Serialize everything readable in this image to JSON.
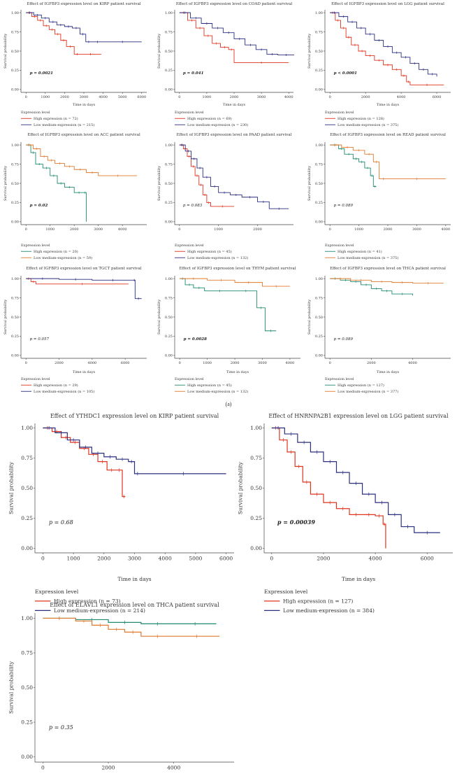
{
  "figure": {
    "panel_label": "(a)",
    "legend_heading": "Expression level"
  },
  "colors": {
    "red": "#e0341e",
    "blue": "#2b2f80",
    "orange": "#e07a2e",
    "green": "#1f8a70",
    "axis": "#444444"
  },
  "chart_data": [
    {
      "type": "line",
      "title": "Effect of IGFBP3 expression level on KIRP patient survival",
      "xlabel": "Time in days",
      "ylabel": "Survival probability",
      "xlim": [
        0,
        6000
      ],
      "ylim": [
        0,
        1
      ],
      "xticks": [
        0,
        1000,
        2000,
        3000,
        4000,
        5000,
        6000
      ],
      "yticks": [
        0,
        0.25,
        0.5,
        0.75,
        1.0
      ],
      "pvalue": "p = 0.0021",
      "series": [
        {
          "name": "High expression (n = 72)",
          "color": "#e0341e",
          "x": [
            0,
            300,
            600,
            900,
            1200,
            1500,
            1800,
            2100,
            2500,
            2800,
            3900
          ],
          "y": [
            1.0,
            0.95,
            0.9,
            0.83,
            0.78,
            0.72,
            0.64,
            0.56,
            0.46,
            0.46,
            0.46
          ]
        },
        {
          "name": "Low medium-expression (n = 215)",
          "color": "#2b2f80",
          "x": [
            0,
            400,
            800,
            1200,
            1600,
            2000,
            2400,
            2800,
            3100,
            3400,
            4000,
            6000
          ],
          "y": [
            1.0,
            0.97,
            0.93,
            0.88,
            0.84,
            0.82,
            0.8,
            0.72,
            0.62,
            0.62,
            0.62,
            0.62
          ]
        }
      ]
    },
    {
      "type": "line",
      "title": "Effect of IGFBP3 expression level on COAD patient survival",
      "xlabel": "Time in days",
      "ylabel": "Survival probability",
      "xlim": [
        0,
        4000
      ],
      "ylim": [
        0,
        1
      ],
      "xticks": [
        0,
        1000,
        2000,
        3000,
        4000
      ],
      "yticks": [
        0,
        0.25,
        0.5,
        0.75,
        1.0
      ],
      "pvalue": "p = 0.041",
      "series": [
        {
          "name": "High expression (n = 69)",
          "color": "#e0341e",
          "x": [
            0,
            300,
            600,
            900,
            1200,
            1500,
            1800,
            2000,
            4000
          ],
          "y": [
            1.0,
            0.9,
            0.8,
            0.7,
            0.6,
            0.55,
            0.52,
            0.35,
            0.35
          ]
        },
        {
          "name": "Low medium-expression (n = 230)",
          "color": "#2b2f80",
          "x": [
            0,
            400,
            800,
            1200,
            1600,
            2000,
            2400,
            2800,
            3200,
            3600,
            4200
          ],
          "y": [
            1.0,
            0.93,
            0.86,
            0.8,
            0.74,
            0.66,
            0.58,
            0.52,
            0.46,
            0.45,
            0.45
          ]
        }
      ]
    },
    {
      "type": "line",
      "title": "Effect of IGFBP3 expression level on LGG patient survival",
      "xlabel": "Time in days",
      "ylabel": "Survival probability",
      "xlim": [
        0,
        6500
      ],
      "ylim": [
        0,
        1
      ],
      "xticks": [
        0,
        2000,
        4000,
        6000
      ],
      "yticks": [
        0,
        0.25,
        0.5,
        0.75,
        1.0
      ],
      "pvalue": "p < 0.0001",
      "series": [
        {
          "name": "High expression (n = 128)",
          "color": "#e0341e",
          "x": [
            0,
            300,
            600,
            900,
            1200,
            1600,
            2000,
            2500,
            3000,
            3500,
            4000,
            4300,
            4500,
            6400
          ],
          "y": [
            1.0,
            0.9,
            0.8,
            0.68,
            0.58,
            0.5,
            0.44,
            0.38,
            0.32,
            0.26,
            0.18,
            0.1,
            0.06,
            0.06
          ]
        },
        {
          "name": "Low medium-expression (n = 375)",
          "color": "#2b2f80",
          "x": [
            0,
            500,
            1000,
            1500,
            2000,
            2500,
            3000,
            3500,
            4000,
            4500,
            5000,
            5500,
            6000
          ],
          "y": [
            1.0,
            0.95,
            0.88,
            0.8,
            0.72,
            0.64,
            0.56,
            0.48,
            0.42,
            0.34,
            0.26,
            0.2,
            0.17
          ]
        }
      ]
    },
    {
      "type": "line",
      "title": "Effect of IGFBP3 expression level on ACC patient survival",
      "xlabel": "",
      "ylabel": "Survival probability",
      "xlim": [
        0,
        4800
      ],
      "ylim": [
        0,
        1
      ],
      "xticks": [
        0,
        1000,
        2000,
        3000,
        4000
      ],
      "yticks": [
        0,
        0.25,
        0.5,
        0.75,
        1.0
      ],
      "pvalue": "p = 0.02",
      "series": [
        {
          "name": "High expression (n = 20)",
          "color": "#1f8a70",
          "x": [
            0,
            200,
            400,
            700,
            1000,
            1300,
            1600,
            2000,
            2400,
            2500
          ],
          "y": [
            1.0,
            0.9,
            0.75,
            0.7,
            0.6,
            0.5,
            0.45,
            0.38,
            0.38,
            0.0
          ]
        },
        {
          "name": "Low medium-expression (n = 59)",
          "color": "#e07a2e",
          "x": [
            0,
            300,
            600,
            900,
            1200,
            1600,
            2000,
            2500,
            3000,
            4600
          ],
          "y": [
            1.0,
            0.95,
            0.85,
            0.8,
            0.76,
            0.72,
            0.68,
            0.64,
            0.6,
            0.6
          ]
        }
      ]
    },
    {
      "type": "line",
      "title": "Effect of IGFBP3 expression level on PAAD patient survival",
      "xlabel": "",
      "ylabel": "Survival probability",
      "xlim": [
        0,
        2800
      ],
      "ylim": [
        0,
        1
      ],
      "xticks": [
        0,
        1000,
        2000
      ],
      "yticks": [
        0,
        0.25,
        0.5,
        0.75,
        1.0
      ],
      "pvalue": "p = 0.083",
      "series": [
        {
          "name": "High expression (n = 45)",
          "color": "#e0341e",
          "x": [
            0,
            100,
            200,
            300,
            400,
            500,
            600,
            700,
            800,
            1400
          ],
          "y": [
            1.0,
            0.95,
            0.85,
            0.72,
            0.6,
            0.48,
            0.35,
            0.25,
            0.2,
            0.2
          ]
        },
        {
          "name": "Low medium-expression (n = 132)",
          "color": "#2b2f80",
          "x": [
            0,
            150,
            300,
            450,
            600,
            800,
            1000,
            1300,
            1600,
            2000,
            2300,
            2800
          ],
          "y": [
            1.0,
            0.92,
            0.82,
            0.7,
            0.58,
            0.46,
            0.38,
            0.35,
            0.32,
            0.26,
            0.17,
            0.17
          ]
        }
      ]
    },
    {
      "type": "line",
      "title": "Effect of IGFBP3 expression level on READ patient survival",
      "xlabel": "",
      "ylabel": "Survival probability",
      "xlim": [
        0,
        4000
      ],
      "ylim": [
        0,
        1
      ],
      "xticks": [
        0,
        1000,
        2000,
        3000,
        4000
      ],
      "yticks": [
        0,
        0.25,
        0.5,
        0.75,
        1.0
      ],
      "pvalue": "p = 0.089",
      "series": [
        {
          "name": "High expression (n = 41)",
          "color": "#1f8a70",
          "x": [
            0,
            300,
            500,
            800,
            1000,
            1200,
            1400,
            1500,
            1600
          ],
          "y": [
            1.0,
            0.95,
            0.88,
            0.82,
            0.78,
            0.7,
            0.6,
            0.46,
            0.46
          ]
        },
        {
          "name": "Low medium-expression (n = 375)",
          "color": "#e07a2e",
          "x": [
            0,
            400,
            800,
            1200,
            1500,
            1700,
            2000,
            4000
          ],
          "y": [
            1.0,
            0.97,
            0.93,
            0.88,
            0.78,
            0.56,
            0.56,
            0.56
          ]
        }
      ]
    },
    {
      "type": "line",
      "title": "Effect of IGFBP3 expression level on TGCT patient survival",
      "xlabel": "Time in days",
      "ylabel": "Survival probability",
      "xlim": [
        0,
        7000
      ],
      "ylim": [
        0,
        1
      ],
      "xticks": [
        0,
        2000,
        4000,
        6000
      ],
      "yticks": [
        0,
        0.25,
        0.5,
        0.75,
        1.0
      ],
      "pvalue": "p = 0.057",
      "series": [
        {
          "name": "High expression (n = 29)",
          "color": "#e0341e",
          "x": [
            0,
            300,
            600,
            6200
          ],
          "y": [
            1.0,
            0.96,
            0.93,
            0.93
          ]
        },
        {
          "name": "Low medium-expression (n = 105)",
          "color": "#2b2f80",
          "x": [
            0,
            2000,
            4000,
            6500,
            6600,
            7000
          ],
          "y": [
            1.0,
            0.99,
            0.98,
            0.98,
            0.74,
            0.74
          ]
        }
      ]
    },
    {
      "type": "line",
      "title": "Effect of IGFBP3 expression level on THYM patient survival",
      "xlabel": "Time in days",
      "ylabel": "Survival probability",
      "xlim": [
        0,
        4200
      ],
      "ylim": [
        0,
        1
      ],
      "xticks": [
        0,
        1000,
        2000,
        3000,
        4000
      ],
      "yticks": [
        0,
        0.25,
        0.5,
        0.75,
        1.0
      ],
      "pvalue": "p = 0.0028",
      "series": [
        {
          "name": "High expression (n = 45)",
          "color": "#1f8a70",
          "x": [
            0,
            200,
            500,
            900,
            2000,
            2800,
            3100,
            3500
          ],
          "y": [
            1.0,
            0.92,
            0.88,
            0.84,
            0.84,
            0.62,
            0.32,
            0.32
          ]
        },
        {
          "name": "Low medium-expression (n = 132)",
          "color": "#e07a2e",
          "x": [
            0,
            1000,
            2000,
            3000,
            4000
          ],
          "y": [
            1.0,
            0.98,
            0.95,
            0.9,
            0.9
          ]
        }
      ]
    },
    {
      "type": "line",
      "title": "Effect of IGFBP3 expression level on THCA patient survival",
      "xlabel": "Time in days",
      "ylabel": "Survival probability",
      "xlim": [
        0,
        5600
      ],
      "ylim": [
        0,
        1
      ],
      "xticks": [
        0,
        2000,
        4000
      ],
      "yticks": [
        0,
        0.25,
        0.5,
        0.75,
        1.0
      ],
      "pvalue": "p = 0.089",
      "series": [
        {
          "name": "High expression (n = 127)",
          "color": "#1f8a70",
          "x": [
            0,
            500,
            1000,
            1500,
            2000,
            2500,
            3000,
            4000
          ],
          "y": [
            1.0,
            0.98,
            0.96,
            0.92,
            0.87,
            0.84,
            0.8,
            0.78
          ]
        },
        {
          "name": "Low medium-expression (n = 377)",
          "color": "#e07a2e",
          "x": [
            0,
            1000,
            2000,
            3000,
            4000,
            5500
          ],
          "y": [
            1.0,
            0.98,
            0.96,
            0.95,
            0.94,
            0.94
          ]
        }
      ]
    },
    {
      "type": "line",
      "title": "Effect of YTHDC1 expression level on KIRP patient survival",
      "xlabel": "Time in days",
      "ylabel": "Survival probability",
      "xlim": [
        0,
        6000
      ],
      "ylim": [
        0,
        1
      ],
      "xticks": [
        0,
        1000,
        2000,
        3000,
        4000,
        5000,
        6000
      ],
      "yticks": [
        0,
        0.25,
        0.5,
        0.75,
        1.0
      ],
      "pvalue": "p = 0.68",
      "series": [
        {
          "name": "High expression (n = 73)",
          "color": "#e0341e",
          "x": [
            0,
            300,
            600,
            900,
            1200,
            1500,
            1800,
            2100,
            2400,
            2600,
            2700
          ],
          "y": [
            1.0,
            0.97,
            0.92,
            0.88,
            0.83,
            0.78,
            0.72,
            0.65,
            0.65,
            0.43,
            0.43
          ]
        },
        {
          "name": "Low medium-expression (n = 214)",
          "color": "#2b2f80",
          "x": [
            0,
            400,
            800,
            1200,
            1600,
            2000,
            2400,
            2800,
            3000,
            3200,
            6000
          ],
          "y": [
            1.0,
            0.96,
            0.9,
            0.84,
            0.79,
            0.76,
            0.74,
            0.72,
            0.62,
            0.62,
            0.62
          ]
        }
      ]
    },
    {
      "type": "line",
      "title": "Effect of HNRNPA2B1 expression level on LGG patient survival",
      "xlabel": "Time in days",
      "ylabel": "Survival probability",
      "xlim": [
        0,
        6700
      ],
      "ylim": [
        0,
        1
      ],
      "xticks": [
        0,
        2000,
        4000,
        6000
      ],
      "yticks": [
        0,
        0.25,
        0.5,
        0.75,
        1.0
      ],
      "pvalue": "p = 0.00039",
      "series": [
        {
          "name": "High expression (n = 127)",
          "color": "#e0341e",
          "x": [
            0,
            300,
            600,
            900,
            1200,
            1500,
            2000,
            2500,
            3000,
            3500,
            4000,
            4300,
            4400
          ],
          "y": [
            1.0,
            0.9,
            0.8,
            0.68,
            0.55,
            0.45,
            0.38,
            0.33,
            0.28,
            0.28,
            0.27,
            0.2,
            0.0
          ]
        },
        {
          "name": "Low medium-expression (n = 384)",
          "color": "#2b2f80",
          "x": [
            0,
            500,
            1000,
            1500,
            2000,
            2500,
            3000,
            3500,
            4000,
            4500,
            5000,
            5500,
            6500
          ],
          "y": [
            1.0,
            0.95,
            0.88,
            0.8,
            0.72,
            0.63,
            0.54,
            0.45,
            0.38,
            0.28,
            0.18,
            0.13,
            0.13
          ]
        }
      ]
    },
    {
      "type": "line",
      "title": "Effect of ELAVL1 expression level on THCA patient survival",
      "xlabel": "",
      "ylabel": "Survival probability",
      "xlim": [
        0,
        5600
      ],
      "ylim": [
        0,
        1
      ],
      "xticks": [
        0,
        2000,
        4000
      ],
      "yticks": [
        0,
        0.25,
        0.5,
        0.75,
        1.0
      ],
      "pvalue": "p = 0.35",
      "series": [
        {
          "name": "High expression",
          "color": "#1f8a70",
          "x": [
            0,
            1000,
            2000,
            3000,
            4000,
            5300
          ],
          "y": [
            1.0,
            0.99,
            0.97,
            0.96,
            0.96,
            0.96
          ]
        },
        {
          "name": "Low medium-expression",
          "color": "#e07a2e",
          "x": [
            0,
            1000,
            1500,
            2000,
            2500,
            3000,
            4000,
            5400
          ],
          "y": [
            1.0,
            0.98,
            0.95,
            0.92,
            0.9,
            0.87,
            0.87,
            0.87
          ]
        }
      ]
    }
  ]
}
